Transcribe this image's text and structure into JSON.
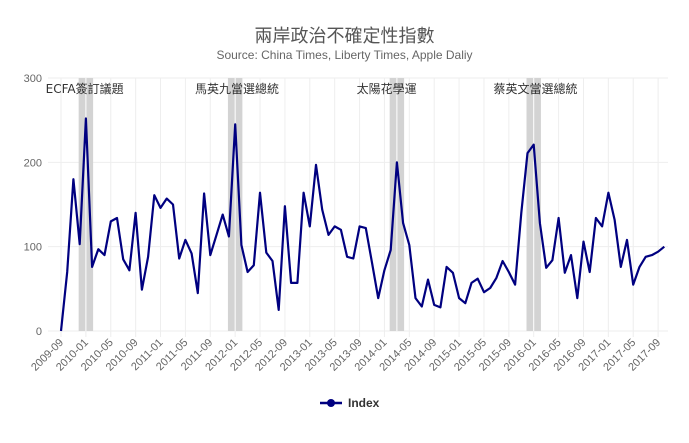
{
  "header": {
    "title": "兩岸政治不確定性指數",
    "subtitle": "Source: China Times, Liberty Times, Apple Daliy"
  },
  "legend": {
    "items": [
      {
        "label": "Index",
        "color": "#000080"
      }
    ]
  },
  "chart_data": {
    "type": "line",
    "title": "兩岸政治不確定性指數",
    "subtitle": "Source: China Times, Liberty Times, Apple Daliy",
    "xlabel": "",
    "ylabel": "",
    "ylim": [
      0,
      300
    ],
    "yticks": [
      0,
      100,
      200,
      300
    ],
    "grid": true,
    "legend_position": "bottom",
    "start_month": "2009-09",
    "x_tick_labels": [
      "2009-09",
      "2010-01",
      "2010-05",
      "2010-09",
      "2011-01",
      "2011-05",
      "2011-09",
      "2012-01",
      "2012-05",
      "2012-09",
      "2013-01",
      "2013-05",
      "2013-09",
      "2014-01",
      "2014-05",
      "2014-09",
      "2015-01",
      "2015-05",
      "2015-09",
      "2016-01",
      "2016-05",
      "2016-09",
      "2017-01",
      "2017-05",
      "2017-09"
    ],
    "series": [
      {
        "name": "Index",
        "color": "#000080",
        "values": [
          0,
          70,
          180,
          103,
          252,
          76,
          97,
          90,
          130,
          134,
          85,
          72,
          140,
          49,
          88,
          161,
          146,
          157,
          150,
          86,
          108,
          92,
          45,
          163,
          90,
          114,
          138,
          112,
          245,
          102,
          70,
          78,
          164,
          93,
          83,
          25,
          148,
          57,
          57,
          164,
          124,
          197,
          144,
          114,
          124,
          120,
          88,
          86,
          124,
          122,
          81,
          39,
          72,
          96,
          200,
          128,
          102,
          39,
          29,
          61,
          31,
          28,
          76,
          69,
          39,
          33,
          57,
          62,
          46,
          51,
          63,
          83,
          70,
          55,
          140,
          211,
          221,
          128,
          75,
          84,
          134,
          69,
          90,
          39,
          106,
          70,
          134,
          124,
          164,
          132,
          76,
          108,
          55,
          76,
          88,
          90,
          94,
          100
        ]
      }
    ],
    "annotations": [
      {
        "label": "ECFA簽訂議題",
        "band_start": "2009-12",
        "band_end": "2010-02"
      },
      {
        "label": "馬英九當選總統",
        "band_start": "2011-12",
        "band_end": "2012-02"
      },
      {
        "label": "太陽花學運",
        "band_start": "2014-02",
        "band_end": "2014-04"
      },
      {
        "label": "蔡英文當選總統",
        "band_start": "2015-12",
        "band_end": "2016-02"
      }
    ]
  },
  "colors": {
    "line": "#000080",
    "band": "#d3d3d3",
    "grid": "#eeeeee",
    "axis_text": "#666666"
  }
}
